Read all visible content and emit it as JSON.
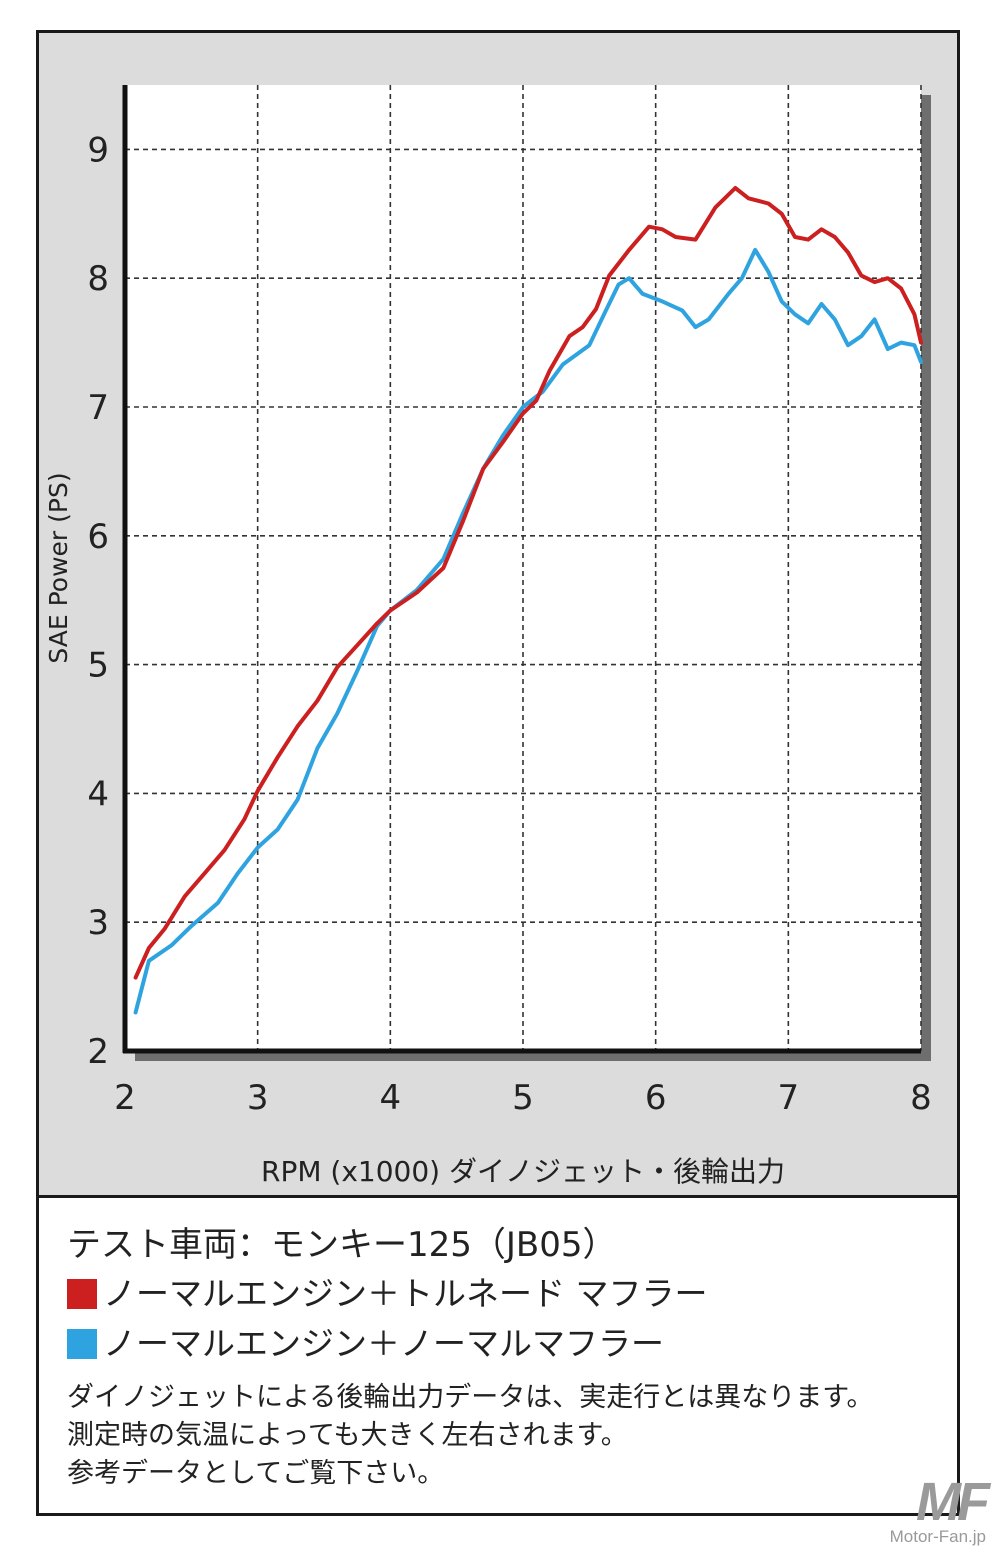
{
  "chart_data": {
    "type": "line",
    "xlabel": "RPM (x1000) ダイノジェット・後輪出力",
    "ylabel": "SAE Power (PS)",
    "xlim": [
      2,
      8
    ],
    "ylim": [
      2,
      9.5
    ],
    "xticks": [
      2,
      3,
      4,
      5,
      6,
      7,
      8
    ],
    "yticks": [
      2,
      3,
      4,
      5,
      6,
      7,
      8,
      9
    ],
    "grid": true,
    "series": [
      {
        "name": "ノーマルエンジン＋トルネード マフラー",
        "color": "#cc1f1f",
        "points": [
          [
            2.08,
            2.57
          ],
          [
            2.18,
            2.8
          ],
          [
            2.3,
            2.95
          ],
          [
            2.45,
            3.2
          ],
          [
            2.6,
            3.38
          ],
          [
            2.75,
            3.56
          ],
          [
            2.9,
            3.8
          ],
          [
            3.0,
            4.02
          ],
          [
            3.15,
            4.28
          ],
          [
            3.3,
            4.52
          ],
          [
            3.45,
            4.72
          ],
          [
            3.6,
            4.98
          ],
          [
            3.75,
            5.15
          ],
          [
            3.9,
            5.32
          ],
          [
            4.0,
            5.42
          ],
          [
            4.2,
            5.56
          ],
          [
            4.4,
            5.75
          ],
          [
            4.55,
            6.12
          ],
          [
            4.7,
            6.52
          ],
          [
            4.85,
            6.73
          ],
          [
            5.0,
            6.95
          ],
          [
            5.1,
            7.05
          ],
          [
            5.2,
            7.28
          ],
          [
            5.35,
            7.55
          ],
          [
            5.45,
            7.62
          ],
          [
            5.55,
            7.76
          ],
          [
            5.65,
            8.02
          ],
          [
            5.8,
            8.22
          ],
          [
            5.95,
            8.4
          ],
          [
            6.05,
            8.38
          ],
          [
            6.15,
            8.32
          ],
          [
            6.3,
            8.3
          ],
          [
            6.45,
            8.55
          ],
          [
            6.6,
            8.7
          ],
          [
            6.7,
            8.62
          ],
          [
            6.85,
            8.58
          ],
          [
            6.95,
            8.5
          ],
          [
            7.05,
            8.32
          ],
          [
            7.15,
            8.3
          ],
          [
            7.25,
            8.38
          ],
          [
            7.35,
            8.32
          ],
          [
            7.45,
            8.2
          ],
          [
            7.55,
            8.02
          ],
          [
            7.65,
            7.97
          ],
          [
            7.75,
            8.0
          ],
          [
            7.85,
            7.92
          ],
          [
            7.95,
            7.72
          ],
          [
            8.0,
            7.5
          ]
        ]
      },
      {
        "name": "ノーマルエンジン＋ノーマルマフラー",
        "color": "#2fa3e0",
        "points": [
          [
            2.08,
            2.3
          ],
          [
            2.18,
            2.7
          ],
          [
            2.35,
            2.82
          ],
          [
            2.5,
            2.97
          ],
          [
            2.7,
            3.15
          ],
          [
            2.85,
            3.38
          ],
          [
            3.0,
            3.58
          ],
          [
            3.15,
            3.72
          ],
          [
            3.3,
            3.95
          ],
          [
            3.45,
            4.35
          ],
          [
            3.6,
            4.62
          ],
          [
            3.75,
            4.95
          ],
          [
            3.9,
            5.3
          ],
          [
            4.0,
            5.42
          ],
          [
            4.2,
            5.58
          ],
          [
            4.4,
            5.82
          ],
          [
            4.55,
            6.18
          ],
          [
            4.7,
            6.52
          ],
          [
            4.85,
            6.78
          ],
          [
            5.0,
            7.0
          ],
          [
            5.15,
            7.12
          ],
          [
            5.3,
            7.33
          ],
          [
            5.5,
            7.48
          ],
          [
            5.62,
            7.74
          ],
          [
            5.72,
            7.95
          ],
          [
            5.8,
            8.0
          ],
          [
            5.9,
            7.88
          ],
          [
            6.05,
            7.82
          ],
          [
            6.2,
            7.75
          ],
          [
            6.3,
            7.62
          ],
          [
            6.4,
            7.68
          ],
          [
            6.55,
            7.88
          ],
          [
            6.65,
            8.0
          ],
          [
            6.75,
            8.22
          ],
          [
            6.85,
            8.05
          ],
          [
            6.95,
            7.82
          ],
          [
            7.05,
            7.72
          ],
          [
            7.15,
            7.65
          ],
          [
            7.25,
            7.8
          ],
          [
            7.35,
            7.68
          ],
          [
            7.45,
            7.48
          ],
          [
            7.55,
            7.55
          ],
          [
            7.65,
            7.68
          ],
          [
            7.75,
            7.45
          ],
          [
            7.85,
            7.5
          ],
          [
            7.95,
            7.48
          ],
          [
            8.0,
            7.35
          ]
        ]
      }
    ]
  },
  "info": {
    "test_vehicle": "テスト車両：モンキー125（JB05）",
    "note_lines": [
      "ダイノジェットによる後輪出力データは、実走行とは異なります。",
      "測定時の気温によっても大きく左右されます。",
      "参考データとしてご覧下さい。"
    ]
  },
  "watermark": {
    "logo": "MF",
    "site": "Motor-Fan.jp"
  }
}
